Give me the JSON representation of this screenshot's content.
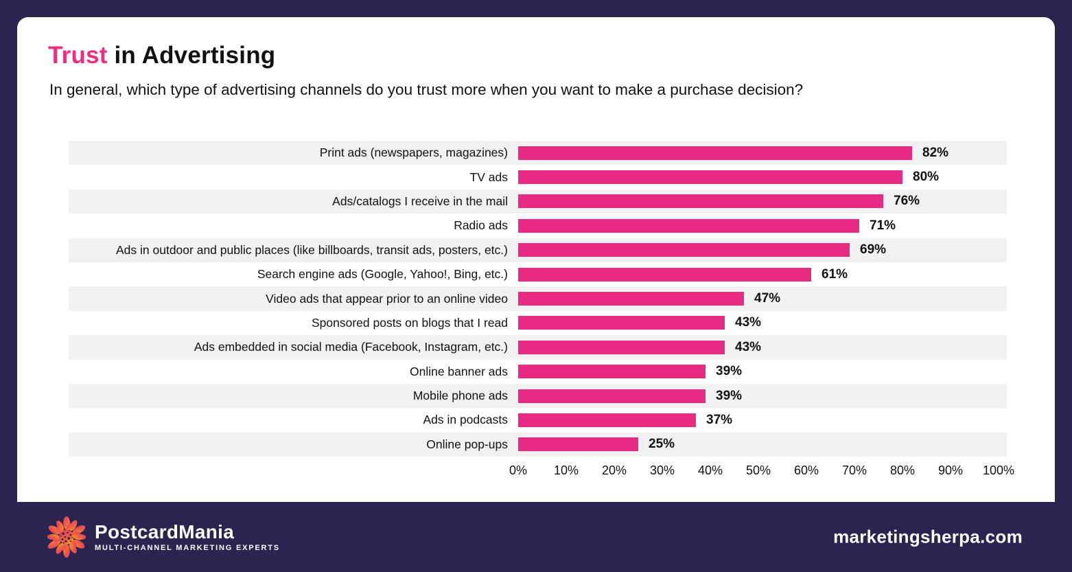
{
  "header": {
    "title_highlight": "Trust",
    "title_rest": " in Advertising",
    "subtitle": "In general, which type of advertising channels do you trust more when you want to make a purchase decision?"
  },
  "chart_data": {
    "type": "bar",
    "orientation": "horizontal",
    "categories": [
      "Print ads (newspapers, magazines)",
      "TV ads",
      "Ads/catalogs I receive in the mail",
      "Radio ads",
      "Ads in outdoor and public places (like billboards, transit ads, posters, etc.)",
      "Search engine ads (Google, Yahoo!, Bing, etc.)",
      "Video ads that appear prior to an online video",
      "Sponsored posts on blogs that I read",
      "Ads embedded in social media (Facebook, Instagram, etc.)",
      "Online banner ads",
      "Mobile phone ads",
      "Ads in podcasts",
      "Online pop-ups"
    ],
    "values": [
      82,
      80,
      76,
      71,
      69,
      61,
      47,
      43,
      43,
      39,
      39,
      37,
      25
    ],
    "value_labels": [
      "82%",
      "80%",
      "76%",
      "71%",
      "69%",
      "61%",
      "47%",
      "43%",
      "43%",
      "39%",
      "39%",
      "37%",
      "25%"
    ],
    "x_ticks": [
      "0%",
      "10%",
      "20%",
      "30%",
      "40%",
      "50%",
      "60%",
      "70%",
      "80%",
      "90%",
      "100%"
    ],
    "xlim": [
      0,
      100
    ],
    "grid": false,
    "legend": false,
    "bar_color": "#e72b83",
    "row_stripe_color": "#f1f1f2"
  },
  "footer": {
    "logo_name": "PostcardMania",
    "logo_tagline": "MULTI-CHANNEL MARKETING EXPERTS",
    "site": "marketingsherpa.com"
  },
  "colors": {
    "background": "#2a2450",
    "card": "#ffffff",
    "accent_pink": "#ee2d7c",
    "bar_pink": "#e72b83",
    "text_dark": "#111111"
  }
}
